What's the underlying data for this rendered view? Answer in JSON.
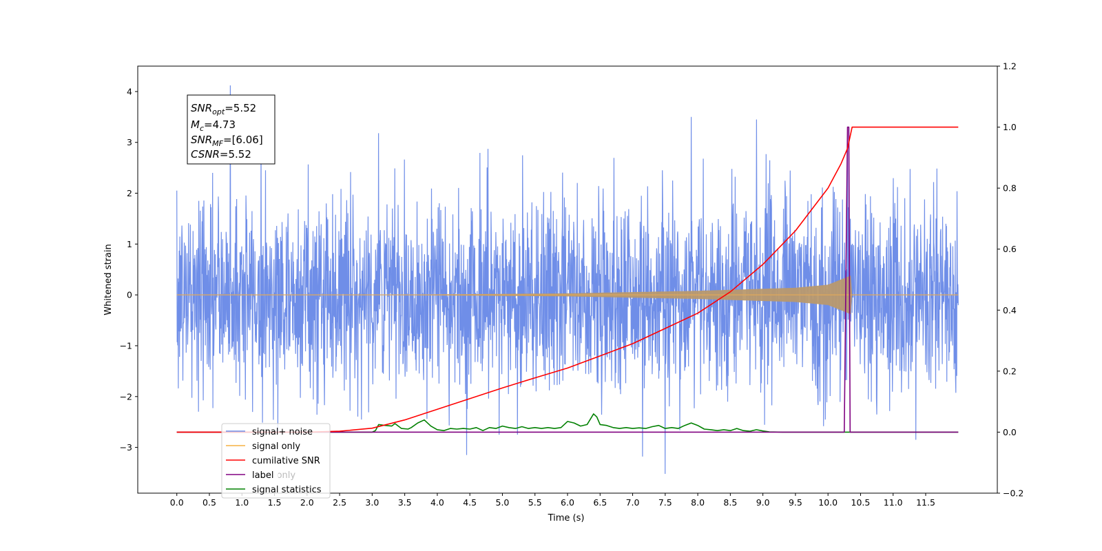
{
  "chart_data": {
    "type": "line",
    "xlabel": "Time (s)",
    "ylabel": "Whitened strain",
    "xlim": [
      -0.6,
      12.6
    ],
    "ylim": [
      -3.9,
      4.5
    ],
    "ylim_right": [
      -0.2,
      1.2
    ],
    "xticks": [
      "0.0",
      "0.5",
      "1.0",
      "1.5",
      "2.0",
      "2.5",
      "3.0",
      "3.5",
      "4.0",
      "4.5",
      "5.0",
      "5.5",
      "6.0",
      "6.5",
      "7.0",
      "7.5",
      "8.0",
      "8.5",
      "9.0",
      "9.5",
      "10.0",
      "10.5",
      "11.0",
      "11.5"
    ],
    "yticks_left": [
      "4",
      "3",
      "2",
      "1",
      "0",
      "−1",
      "−2",
      "−3"
    ],
    "yticks_left_values": [
      4,
      3,
      2,
      1,
      0,
      -1,
      -2,
      -3
    ],
    "yticks_right": [
      "1.2",
      "1.0",
      "0.8",
      "0.6",
      "0.4",
      "0.2",
      "0.0",
      "−0.2"
    ],
    "yticks_right_values": [
      1.2,
      1.0,
      0.8,
      0.6,
      0.4,
      0.2,
      0.0,
      -0.2
    ],
    "legend_position": "lower-left",
    "info_box": {
      "snr_opt_base": "SNR",
      "snr_opt_sub": "opt",
      "snr_opt_value": "=5.52",
      "mc_base": "M",
      "mc_sub": "c",
      "mc_value": "=4.73",
      "snr_mf_base": "SNR",
      "snr_mf_sub": "MF",
      "snr_mf_value": "=[6.06]",
      "csnr_base": "CSNR",
      "csnr_value": "=5.52"
    },
    "series": [
      {
        "name": "signal+ noise",
        "axis": "left",
        "color": "#6f8ee8",
        "t_start": 0.0,
        "t_end": 12.0,
        "noise_sigma": 0.95,
        "notable_peaks": [
          [
            0.82,
            4.12
          ],
          [
            3.1,
            3.18
          ],
          [
            7.9,
            3.5
          ],
          [
            8.9,
            3.45
          ],
          [
            10.3,
            3.25
          ],
          [
            7.5,
            -3.52
          ],
          [
            4.45,
            -3.15
          ],
          [
            7.15,
            -3.18
          ],
          [
            11.35,
            -2.85
          ]
        ]
      },
      {
        "name": "signal only",
        "axis": "left",
        "color": "#f5b041",
        "t_start": 0.0,
        "t_end": 12.0,
        "merger_time": 10.35,
        "envelope": [
          [
            0.0,
            0.0
          ],
          [
            3.0,
            0.0
          ],
          [
            6.0,
            0.03
          ],
          [
            8.0,
            0.08
          ],
          [
            9.5,
            0.14
          ],
          [
            10.0,
            0.2
          ],
          [
            10.35,
            0.38
          ],
          [
            10.37,
            0.0
          ],
          [
            12.0,
            0.0
          ]
        ]
      },
      {
        "name": "cumilative SNR",
        "axis": "right",
        "color": "#ff0000",
        "x": [
          0.0,
          2.0,
          2.5,
          3.0,
          3.5,
          4.0,
          4.5,
          5.0,
          5.5,
          6.0,
          6.5,
          7.0,
          7.5,
          8.0,
          8.5,
          9.0,
          9.5,
          10.0,
          10.2,
          10.3,
          10.37,
          12.0
        ],
        "y": [
          0.0,
          0.0,
          0.003,
          0.013,
          0.04,
          0.075,
          0.11,
          0.145,
          0.178,
          0.21,
          0.25,
          0.29,
          0.34,
          0.39,
          0.46,
          0.55,
          0.66,
          0.8,
          0.88,
          0.93,
          1.0,
          1.0
        ]
      },
      {
        "name": "label",
        "axis": "right",
        "color": "#800080",
        "x": [
          0.0,
          10.25,
          10.3,
          10.32,
          10.34,
          10.37,
          12.0
        ],
        "y": [
          0.0,
          0.0,
          1.0,
          1.0,
          0.0,
          0.0,
          0.0
        ]
      },
      {
        "name": "label only",
        "axis": "right",
        "color": "#c0c0c0"
      },
      {
        "name": "signal statistics",
        "axis": "right",
        "color": "#008000",
        "x": [
          0.0,
          3.0,
          3.05,
          3.1,
          3.2,
          3.3,
          3.35,
          3.45,
          3.55,
          3.6,
          3.7,
          3.8,
          3.9,
          4.0,
          4.1,
          4.2,
          4.3,
          4.4,
          4.5,
          4.6,
          4.7,
          4.8,
          4.9,
          5.0,
          5.1,
          5.2,
          5.3,
          5.4,
          5.5,
          5.6,
          5.7,
          5.8,
          5.9,
          6.0,
          6.1,
          6.2,
          6.3,
          6.4,
          6.45,
          6.5,
          6.6,
          6.7,
          6.8,
          6.9,
          7.0,
          7.1,
          7.2,
          7.3,
          7.4,
          7.5,
          7.6,
          7.7,
          7.8,
          7.9,
          8.0,
          8.1,
          8.2,
          8.3,
          8.4,
          8.5,
          8.6,
          8.7,
          8.8,
          8.9,
          9.0,
          9.1,
          9.3,
          9.5,
          12.0
        ],
        "y": [
          0.0,
          0.0,
          0.005,
          0.025,
          0.022,
          0.02,
          0.028,
          0.012,
          0.01,
          0.015,
          0.03,
          0.04,
          0.02,
          0.008,
          0.005,
          0.012,
          0.01,
          0.012,
          0.01,
          0.015,
          0.005,
          0.015,
          0.012,
          0.02,
          0.015,
          0.012,
          0.018,
          0.012,
          0.015,
          0.012,
          0.015,
          0.012,
          0.015,
          0.035,
          0.03,
          0.02,
          0.025,
          0.06,
          0.05,
          0.025,
          0.022,
          0.015,
          0.012,
          0.015,
          0.012,
          0.014,
          0.012,
          0.018,
          0.022,
          0.012,
          0.015,
          0.012,
          0.022,
          0.03,
          0.022,
          0.01,
          0.008,
          0.005,
          0.008,
          0.005,
          0.012,
          0.005,
          0.003,
          0.008,
          0.004,
          0.001,
          0.0,
          0.0,
          0.0
        ]
      }
    ]
  }
}
